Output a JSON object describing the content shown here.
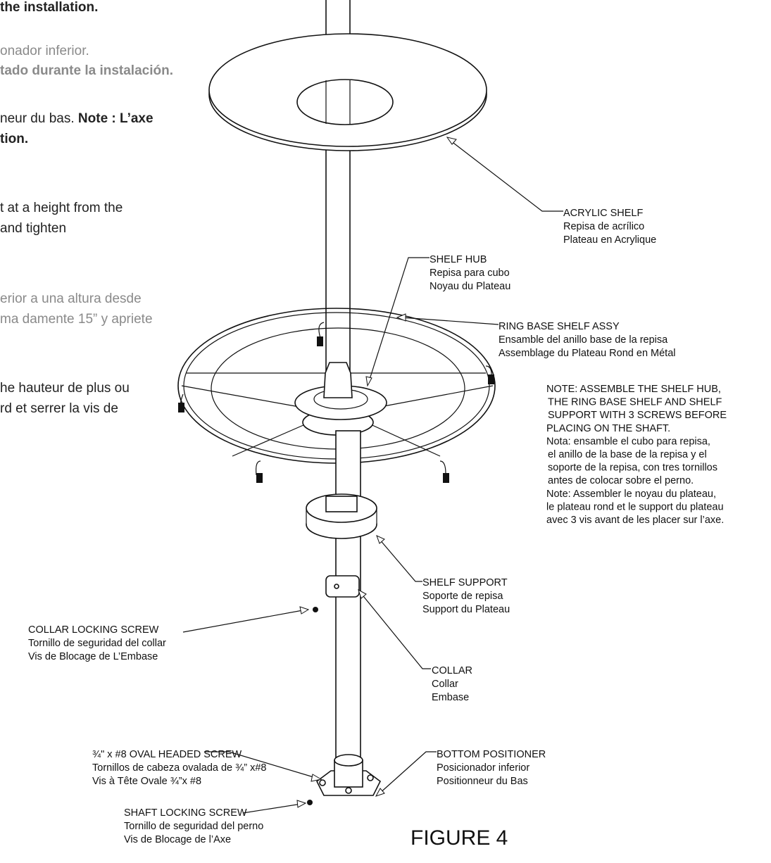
{
  "instructions": [
    "the installation.",
    "onador inferior.",
    "tado durante la instalación.",
    {
      "regular": "neur du bas. ",
      "bold": "Note : L’axe"
    },
    "tion.",
    "t at a height from the",
    "and tighten",
    "erior a una altura desde",
    "ma damente 15” y apriete",
    "he hauteur de plus ou",
    "rd et serrer la vis de"
  ],
  "callouts": [
    {
      "lines": [
        "ACRYLIC SHELF",
        "Repisa de acrílico",
        "Plateau en Acrylique"
      ]
    },
    {
      "lines": [
        "SHELF HUB",
        "Repisa para cubo",
        "Noyau du Plateau"
      ]
    },
    {
      "lines": [
        "RING BASE SHELF ASSY",
        "Ensamble del anillo base de la repisa",
        "Assemblage du Plateau Rond en Métal"
      ]
    },
    {
      "lines": [
        "SHELF SUPPORT",
        "Soporte de repisa",
        "Support du Plateau"
      ]
    },
    {
      "lines": [
        "COLLAR LOCKING SCREW",
        "Tornillo de seguridad del collar",
        "Vis de Blocage de L’Embase"
      ]
    },
    {
      "lines": [
        "COLLAR",
        "Collar",
        "Embase"
      ]
    },
    {
      "lines": [
        "¾\" x #8 OVAL HEADED SCREW",
        "Tornillos de cabeza ovalada de ¾” x#8",
        "Vis à Tête Ovale  ¾”x #8"
      ]
    },
    {
      "lines": [
        "BOTTOM POSITIONER",
        "Posicionador inferior",
        "Positionneur du Bas"
      ]
    },
    {
      "lines": [
        "SHAFT LOCKING SCREW",
        "Tornillo de seguridad del perno",
        "Vis de Blocage de l’Axe"
      ]
    }
  ],
  "note": {
    "lines": [
      "NOTE: ASSEMBLE THE SHELF HUB,",
      "THE RING BASE SHELF AND SHELF",
      "SUPPORT WITH 3 SCREWS BEFORE",
      "PLACING ON THE SHAFT.",
      "Nota: ensamble el cubo para repisa,",
      "el anillo de la base de la repisa y el",
      "soporte de la repisa, con tres tornillos",
      "antes de colocar sobre el perno.",
      "Note: Assembler le noyau du plateau,",
      "le plateau rond et le support du plateau",
      "avec 3 vis avant de les placer sur l’axe."
    ]
  },
  "figure_label": "FIGURE 4"
}
